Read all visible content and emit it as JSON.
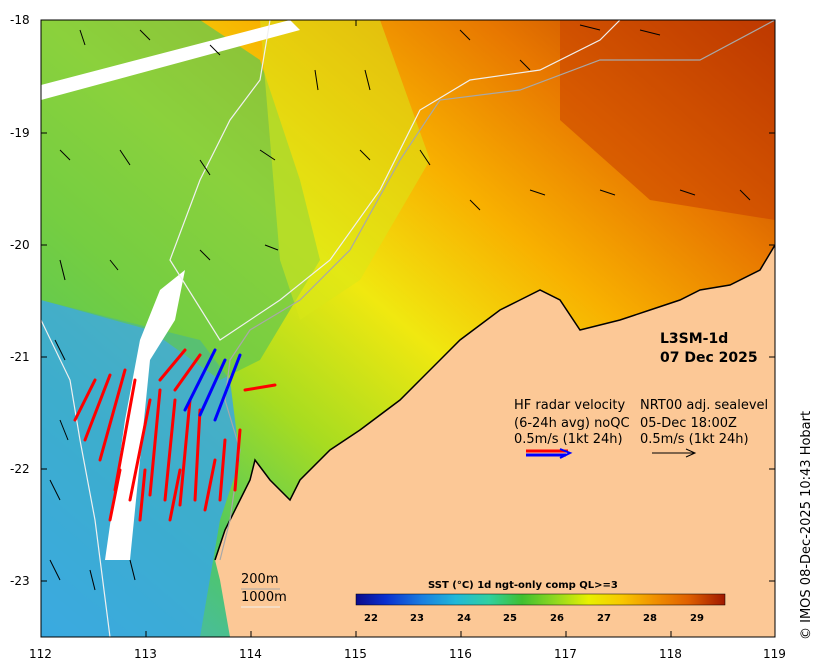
{
  "map": {
    "product": "L3SM-1d",
    "date": "07 Dec 2025",
    "credit": "© IMOS 08-Dec-2025 10:43 Hobart",
    "lat_ticks": [
      "-18",
      "-19",
      "-20",
      "-21",
      "-22",
      "-23"
    ],
    "lon_ticks": [
      "112",
      "113",
      "114",
      "115",
      "116",
      "117",
      "118",
      "119"
    ],
    "bathymetry": {
      "line1": "200m",
      "line2": "1000m"
    }
  },
  "legend": {
    "hf_line1": "HF radar velocity",
    "hf_line2": "(6-24h avg) noQC",
    "hf_line3": "0.5m/s (1kt 24h)",
    "sl_line1": "NRT00 adj. sealevel",
    "sl_line2": "05-Dec 18:00Z",
    "sl_line3": "0.5m/s (1kt 24h)",
    "hf_colors": [
      "#ff0000",
      "#0000ff"
    ],
    "sl_color": "#000000"
  },
  "colorbar": {
    "title": "SST (°C) 1d ngt-only comp QL>=3",
    "ticks": [
      "22",
      "23",
      "24",
      "25",
      "26",
      "27",
      "28",
      "29"
    ],
    "range": [
      21.5,
      29.5
    ],
    "colors": [
      "#08088a",
      "#0a2fcf",
      "#1a7fe0",
      "#20b8d8",
      "#30d0a0",
      "#40c030",
      "#90d820",
      "#e8f000",
      "#f8c800",
      "#f09000",
      "#e06000",
      "#c02000",
      "#901000"
    ]
  },
  "land_color": "#fcc896"
}
